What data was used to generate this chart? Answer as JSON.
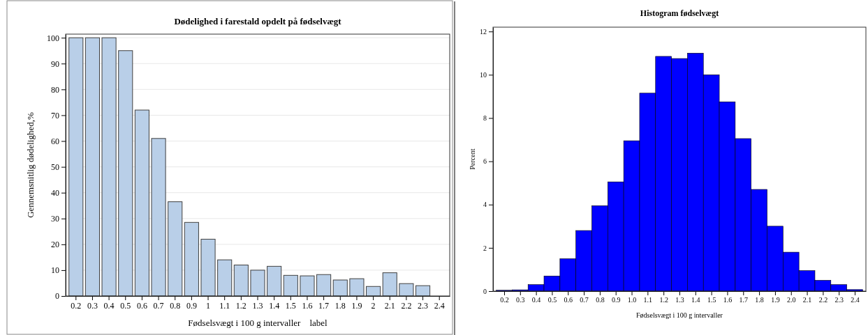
{
  "chart_data": [
    {
      "type": "bar",
      "title": "Dødelighed i farestald opdelt på fødselvægt",
      "xlabel": "Fødselsvægt i 100 g intervaller    label",
      "ylabel": "Gennemsnitlig dødelighed,%",
      "categories": [
        "0.2",
        "0.3",
        "0.4",
        "0.5",
        "0.6",
        "0.7",
        "0.8",
        "0.9",
        "1",
        "1.1",
        "1.2",
        "1.3",
        "1.4",
        "1.5",
        "1.6",
        "1.7",
        "1.8",
        "1.9",
        "2",
        "2.1",
        "2.2",
        "2.3",
        "2.4"
      ],
      "values": [
        100,
        100,
        100,
        95,
        72,
        61,
        36.5,
        28.5,
        22,
        14,
        12,
        10,
        11.5,
        8,
        7.8,
        8.3,
        6.2,
        6.7,
        3.7,
        9,
        4.8,
        4,
        null
      ],
      "color": "#b9cfe8",
      "ylim": [
        0,
        101.4
      ],
      "yticks": [
        0,
        10,
        20,
        30,
        40,
        50,
        60,
        70,
        80,
        90,
        100
      ],
      "grid": "y"
    },
    {
      "type": "histogram",
      "title": "Histogram fødselvægt",
      "xlabel": "Fødselsvægt i 100 g intervaller",
      "ylabel": "Percent",
      "bins": [
        0.15,
        0.25,
        0.35,
        0.45,
        0.55,
        0.65,
        0.75,
        0.85,
        0.95,
        1.05,
        1.15,
        1.25,
        1.35,
        1.45,
        1.55,
        1.65,
        1.75,
        1.85,
        1.95,
        2.05,
        2.15,
        2.25,
        2.35,
        2.45
      ],
      "values": [
        0.04,
        0.06,
        0.3,
        0.7,
        1.5,
        2.8,
        3.95,
        5.05,
        6.95,
        9.15,
        10.85,
        10.75,
        11,
        10,
        8.75,
        7.05,
        4.7,
        3,
        1.8,
        0.95,
        0.5,
        0.3,
        0.07
      ],
      "color": "#0000ff",
      "xlim": [
        0.13,
        2.47
      ],
      "xticks": [
        0.2,
        0.3,
        0.4,
        0.5,
        0.6,
        0.7,
        0.8,
        0.9,
        {
          "value": 1,
          "label": "1.0"
        },
        1.1,
        1.2,
        1.3,
        1.4,
        1.5,
        1.6,
        1.7,
        1.8,
        1.9,
        {
          "value": 2,
          "label": "2.0"
        },
        2.1,
        2.2,
        2.3,
        2.4
      ],
      "ylim": [
        0,
        12.2
      ],
      "yticks": [
        0,
        2,
        4,
        6,
        8,
        10,
        12
      ]
    }
  ]
}
